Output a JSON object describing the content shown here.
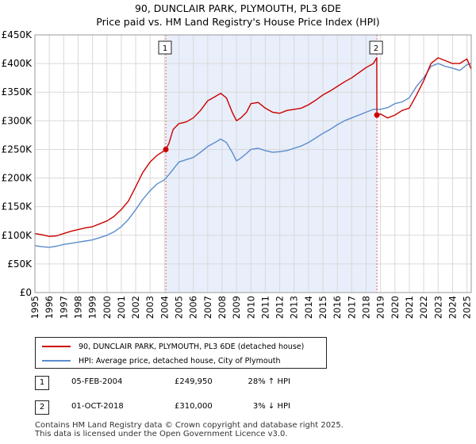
{
  "chart_data": {
    "type": "line",
    "title": "90, DUNCLAIR PARK, PLYMOUTH, PL3 6DE",
    "subtitle": "Price paid vs. HM Land Registry's House Price Index (HPI)",
    "xlim": [
      1995,
      2025.3
    ],
    "ylim": [
      0,
      450000
    ],
    "y_ticks": [
      0,
      50000,
      100000,
      150000,
      200000,
      250000,
      300000,
      350000,
      400000,
      450000
    ],
    "y_tick_labels": [
      "£0",
      "£50K",
      "£100K",
      "£150K",
      "£200K",
      "£250K",
      "£300K",
      "£350K",
      "£400K",
      "£450K"
    ],
    "x_ticks": [
      1995,
      1996,
      1997,
      1998,
      1999,
      2000,
      2001,
      2002,
      2003,
      2004,
      2005,
      2006,
      2007,
      2008,
      2009,
      2010,
      2011,
      2012,
      2013,
      2014,
      2015,
      2016,
      2017,
      2018,
      2019,
      2020,
      2021,
      2022,
      2023,
      2024,
      2025
    ],
    "x_tick_labels": [
      "1995",
      "1996",
      "1997",
      "1998",
      "1999",
      "2000",
      "2001",
      "2002",
      "2003",
      "2004",
      "2005",
      "2006",
      "2007",
      "2008",
      "2009",
      "2010",
      "2011",
      "2012",
      "2013",
      "2014",
      "2015",
      "2016",
      "2017",
      "2018",
      "2019",
      "2020",
      "2021",
      "2022",
      "2023",
      "2024",
      "2025"
    ],
    "grid": true,
    "shaded_range": [
      2004.09,
      2018.75
    ],
    "series": [
      {
        "name": "90, DUNCLAIR PARK, PLYMOUTH, PL3 6DE (detached house)",
        "color": "#cc0000",
        "x": [
          1995.0,
          1995.5,
          1996.0,
          1996.5,
          1997.0,
          1997.5,
          1998.0,
          1998.5,
          1999.0,
          1999.5,
          2000.0,
          2000.5,
          2001.0,
          2001.5,
          2002.0,
          2002.5,
          2003.0,
          2003.5,
          2004.0,
          2004.09,
          2004.3,
          2004.6,
          2005.0,
          2005.5,
          2006.0,
          2006.5,
          2007.0,
          2007.5,
          2007.9,
          2008.3,
          2008.7,
          2009.0,
          2009.3,
          2009.7,
          2010.0,
          2010.5,
          2011.0,
          2011.5,
          2012.0,
          2012.5,
          2013.0,
          2013.5,
          2014.0,
          2014.5,
          2015.0,
          2015.5,
          2016.0,
          2016.5,
          2017.0,
          2017.5,
          2018.0,
          2018.5,
          2018.74,
          2018.75,
          2019.0,
          2019.5,
          2020.0,
          2020.5,
          2021.0,
          2021.5,
          2022.0,
          2022.5,
          2023.0,
          2023.5,
          2024.0,
          2024.5,
          2025.0,
          2025.3
        ],
        "values": [
          103000,
          101000,
          98000,
          99000,
          103000,
          107000,
          110000,
          113000,
          115000,
          120000,
          125000,
          133000,
          145000,
          160000,
          185000,
          210000,
          228000,
          240000,
          248000,
          249950,
          260000,
          285000,
          295000,
          298000,
          305000,
          318000,
          335000,
          342000,
          348000,
          340000,
          315000,
          300000,
          305000,
          315000,
          330000,
          332000,
          322000,
          315000,
          313000,
          318000,
          320000,
          322000,
          328000,
          336000,
          345000,
          352000,
          360000,
          368000,
          375000,
          384000,
          393000,
          400000,
          410000,
          310000,
          312000,
          305000,
          310000,
          318000,
          322000,
          345000,
          370000,
          400000,
          410000,
          405000,
          400000,
          400000,
          408000,
          390000
        ]
      },
      {
        "name": "HPI: Average price, detached house, City of Plymouth",
        "color": "#5b8ccc",
        "x": [
          1995.0,
          1995.5,
          1996.0,
          1996.5,
          1997.0,
          1997.5,
          1998.0,
          1998.5,
          1999.0,
          1999.5,
          2000.0,
          2000.5,
          2001.0,
          2001.5,
          2002.0,
          2002.5,
          2003.0,
          2003.5,
          2004.0,
          2004.5,
          2005.0,
          2005.5,
          2006.0,
          2006.5,
          2007.0,
          2007.5,
          2007.9,
          2008.3,
          2008.7,
          2009.0,
          2009.3,
          2009.7,
          2010.0,
          2010.5,
          2011.0,
          2011.5,
          2012.0,
          2012.5,
          2013.0,
          2013.5,
          2014.0,
          2014.5,
          2015.0,
          2015.5,
          2016.0,
          2016.5,
          2017.0,
          2017.5,
          2018.0,
          2018.5,
          2019.0,
          2019.5,
          2020.0,
          2020.5,
          2021.0,
          2021.5,
          2022.0,
          2022.5,
          2023.0,
          2023.5,
          2024.0,
          2024.5,
          2025.0,
          2025.3
        ],
        "values": [
          82000,
          80000,
          79000,
          81000,
          84000,
          86000,
          88000,
          90000,
          92000,
          96000,
          100000,
          106000,
          115000,
          128000,
          145000,
          163000,
          178000,
          190000,
          197000,
          212000,
          228000,
          232000,
          236000,
          245000,
          255000,
          262000,
          268000,
          262000,
          245000,
          230000,
          235000,
          243000,
          250000,
          252000,
          248000,
          245000,
          246000,
          248000,
          252000,
          256000,
          262000,
          270000,
          278000,
          285000,
          293000,
          300000,
          305000,
          310000,
          315000,
          320000,
          320000,
          323000,
          330000,
          333000,
          340000,
          360000,
          375000,
          395000,
          400000,
          395000,
          392000,
          388000,
          398000,
          400000
        ]
      }
    ],
    "sales": [
      {
        "label": "1",
        "date": "05-FEB-2004",
        "x": 2004.09,
        "price": 249950,
        "price_text": "£249,950",
        "hpi_text": "28% ↑ HPI"
      },
      {
        "label": "2",
        "date": "01-OCT-2018",
        "x": 2018.75,
        "price": 310000,
        "price_text": "£310,000",
        "hpi_text": "3% ↓ HPI"
      }
    ]
  },
  "footer": {
    "line1": "Contains HM Land Registry data © Crown copyright and database right 2025.",
    "line2": "This data is licensed under the Open Government Licence v3.0."
  }
}
